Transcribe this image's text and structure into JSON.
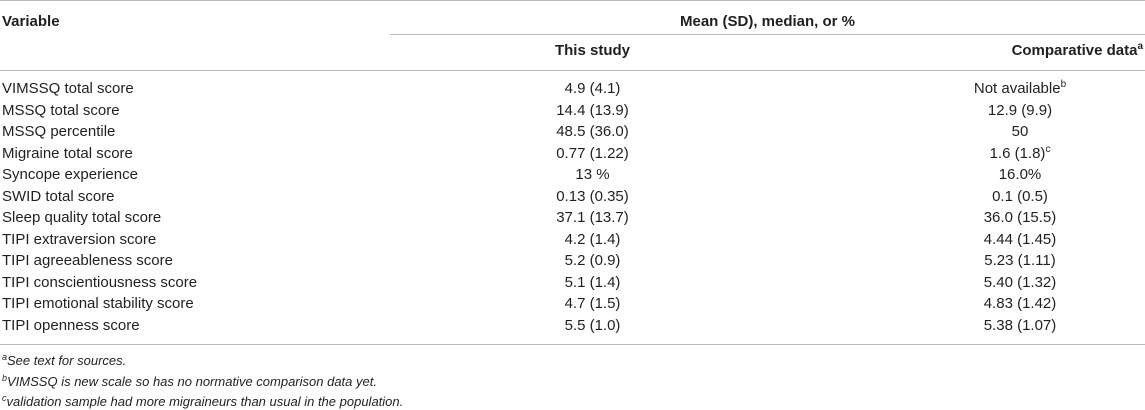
{
  "header": {
    "variable": "Variable",
    "group": "Mean (SD), median, or %",
    "col_study": "This study",
    "col_comparative": "Comparative data",
    "col_comparative_sup": "a"
  },
  "rows": [
    {
      "variable": "VIMSSQ total score",
      "study": "4.9 (4.1)",
      "comparative": "Not available",
      "sup": "b"
    },
    {
      "variable": "MSSQ total score",
      "study": "14.4 (13.9)",
      "comparative": "12.9 (9.9)",
      "sup": ""
    },
    {
      "variable": "MSSQ percentile",
      "study": "48.5 (36.0)",
      "comparative": "50",
      "sup": ""
    },
    {
      "variable": "Migraine total score",
      "study": "0.77 (1.22)",
      "comparative": "1.6 (1.8)",
      "sup": "c"
    },
    {
      "variable": "Syncope experience",
      "study": "13 %",
      "comparative": "16.0%",
      "sup": ""
    },
    {
      "variable": "SWID total score",
      "study": "0.13 (0.35)",
      "comparative": "0.1 (0.5)",
      "sup": ""
    },
    {
      "variable": "Sleep quality total score",
      "study": "37.1 (13.7)",
      "comparative": "36.0 (15.5)",
      "sup": ""
    },
    {
      "variable": "TIPI extraversion score",
      "study": "4.2 (1.4)",
      "comparative": "4.44 (1.45)",
      "sup": ""
    },
    {
      "variable": "TIPI agreeableness score",
      "study": "5.2 (0.9)",
      "comparative": "5.23 (1.11)",
      "sup": ""
    },
    {
      "variable": "TIPI conscientiousness score",
      "study": "5.1 (1.4)",
      "comparative": "5.40 (1.32)",
      "sup": ""
    },
    {
      "variable": "TIPI emotional stability score",
      "study": "4.7 (1.5)",
      "comparative": "4.83 (1.42)",
      "sup": ""
    },
    {
      "variable": "TIPI openness score",
      "study": "5.5 (1.0)",
      "comparative": "5.38 (1.07)",
      "sup": ""
    }
  ],
  "footnotes": [
    {
      "mark": "a",
      "text": "See text for sources."
    },
    {
      "mark": "b",
      "text": "VIMSSQ is new scale so has no normative comparison data yet."
    },
    {
      "mark": "c",
      "text": "validation sample had more migraineurs than usual in the population."
    }
  ]
}
